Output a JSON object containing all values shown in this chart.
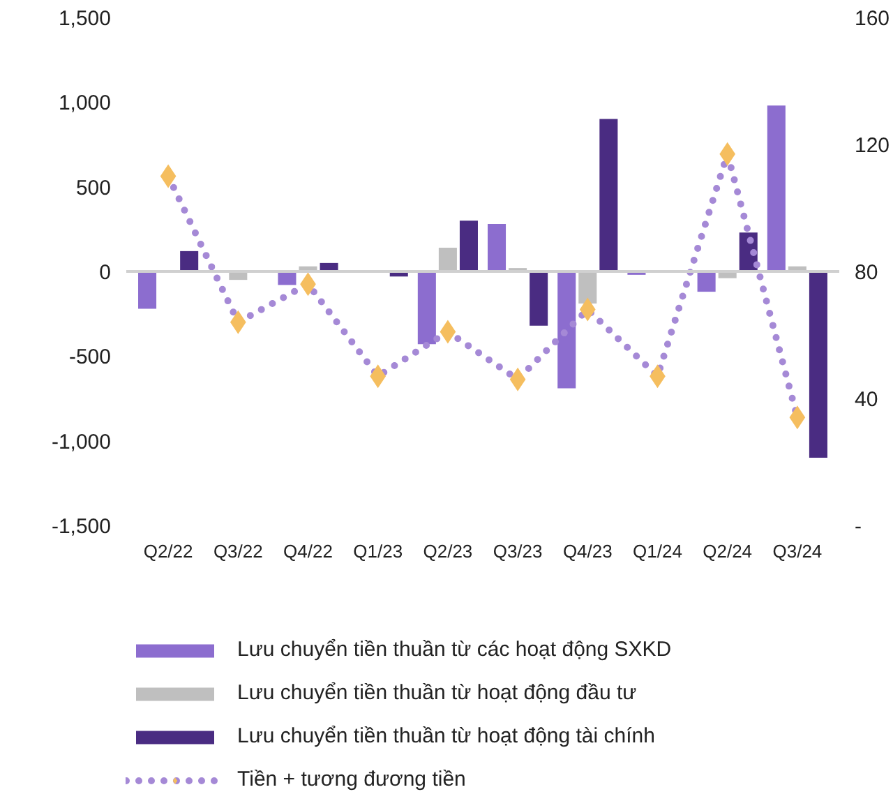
{
  "chart_data": {
    "type": "bar",
    "categories": [
      "Q2/22",
      "Q3/22",
      "Q4/22",
      "Q1/23",
      "Q2/23",
      "Q3/23",
      "Q4/23",
      "Q1/24",
      "Q2/24",
      "Q3/24"
    ],
    "series": [
      {
        "name": "Lưu chuyển tiền thuần từ các hoạt động SXKD",
        "color": "#8c6dcf",
        "values": [
          -220,
          0,
          -80,
          0,
          -430,
          280,
          -690,
          -20,
          -120,
          980
        ]
      },
      {
        "name": "Lưu chuyển tiền thuần từ hoạt động đầu tư",
        "color": "#bfbfbf",
        "values": [
          0,
          -50,
          30,
          0,
          140,
          20,
          -190,
          0,
          -40,
          30
        ]
      },
      {
        "name": "Lưu chuyển tiền thuần từ hoạt động tài chính",
        "color": "#4a2c82",
        "values": [
          120,
          0,
          50,
          -30,
          300,
          -320,
          900,
          0,
          230,
          -1100
        ]
      },
      {
        "name": "Tiền + tương đương tiền",
        "type": "line",
        "axis": "y2",
        "color": "#a589d6",
        "colors": [
          "#f5be5f",
          "#f5be5f",
          "#f5be5f",
          "#f5be5f",
          "#f5be5f",
          "#f5be5f",
          "#f5be5f",
          "#f5be5f",
          "#f5be5f",
          "#f5be5f"
        ],
        "marker": "diamond",
        "line_style": "dotted",
        "values": [
          110,
          64,
          76,
          47,
          61,
          46,
          68,
          47,
          117,
          34
        ]
      }
    ],
    "ylim": [
      -1500,
      1500
    ],
    "yticks": [
      {
        "value": -1500,
        "label": "-1,500"
      },
      {
        "value": -1000,
        "label": "-1,000"
      },
      -500,
      0,
      500,
      {
        "value": 1000,
        "label": "1,000"
      },
      {
        "value": 1500,
        "label": "1,500"
      }
    ],
    "y2lim": [
      0,
      160
    ],
    "y2ticks": [
      {
        "value": 0,
        "label": "-"
      },
      40,
      80,
      120,
      160
    ],
    "ref_lines": [
      {
        "axis": "y",
        "value": 0,
        "color": "#d0d0d0"
      }
    ],
    "grid": false,
    "legend": "bottom"
  }
}
